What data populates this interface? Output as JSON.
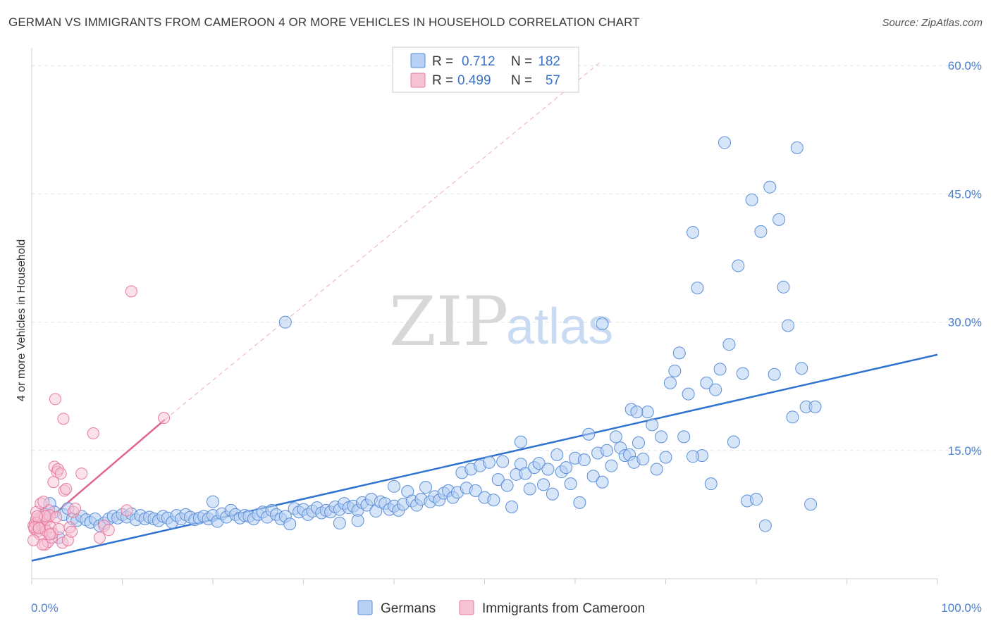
{
  "title": "GERMAN VS IMMIGRANTS FROM CAMEROON 4 OR MORE VEHICLES IN HOUSEHOLD CORRELATION CHART",
  "source": "Source: ZipAtlas.com",
  "watermark": {
    "zip": "ZIP",
    "atlas": "atlas"
  },
  "colors": {
    "germans": "#5b8fd9",
    "germans_fill": "#b7d0f3",
    "cameroon": "#e87aa0",
    "cameroon_fill": "#f6c3d5",
    "blue_line": "#2f73d0",
    "pink_line": "#e0648f",
    "tick": "#4a7fd0"
  },
  "legend": {
    "rows": [
      {
        "r_label": "R =",
        "r_value": "0.712",
        "n_label": "N =",
        "n_value": "182"
      },
      {
        "r_label": "R =",
        "r_value": "0.499",
        "n_label": "N =",
        "n_value": "57"
      }
    ]
  },
  "bottom_legend": [
    "Germans",
    "Immigrants from Cameroon"
  ],
  "chart_data": {
    "type": "scatter",
    "xlabel": "",
    "ylabel": "4 or more Vehicles in Household",
    "xlim": [
      0,
      100
    ],
    "ylim": [
      0,
      61.5
    ],
    "x_tick_labels": [
      "0.0%",
      "100.0%"
    ],
    "y_ticks": [
      15,
      30,
      45,
      60
    ],
    "y_tick_labels": [
      "15.0%",
      "30.0%",
      "45.0%",
      "60.0%"
    ],
    "grid": true,
    "legend_placement": "top-center",
    "series": [
      {
        "name": "Germans",
        "trend": {
          "x": [
            0,
            100
          ],
          "y": [
            2.1,
            26.2
          ]
        },
        "points": [
          [
            1.5,
            7.5
          ],
          [
            2.0,
            8.8
          ],
          [
            2.5,
            7.8
          ],
          [
            3.0,
            4.8
          ],
          [
            3.5,
            7.5
          ],
          [
            4.0,
            8.2
          ],
          [
            4.5,
            7.0
          ],
          [
            5.0,
            6.8
          ],
          [
            5.5,
            7.3
          ],
          [
            6.0,
            6.9
          ],
          [
            6.5,
            6.6
          ],
          [
            7.0,
            7.0
          ],
          [
            7.5,
            6.2
          ],
          [
            8.0,
            6.5
          ],
          [
            8.5,
            7.0
          ],
          [
            9.0,
            7.3
          ],
          [
            9.5,
            7.1
          ],
          [
            10.0,
            7.5
          ],
          [
            10.5,
            7.2
          ],
          [
            11.0,
            7.6
          ],
          [
            11.5,
            6.9
          ],
          [
            12.0,
            7.4
          ],
          [
            12.5,
            7.0
          ],
          [
            13.0,
            7.2
          ],
          [
            13.5,
            7.0
          ],
          [
            14.0,
            6.8
          ],
          [
            14.5,
            7.3
          ],
          [
            15.0,
            7.1
          ],
          [
            15.5,
            6.6
          ],
          [
            16.0,
            7.4
          ],
          [
            16.5,
            7.0
          ],
          [
            17.0,
            7.5
          ],
          [
            17.5,
            7.2
          ],
          [
            18.0,
            6.9
          ],
          [
            18.5,
            7.1
          ],
          [
            19.0,
            7.3
          ],
          [
            19.5,
            7.0
          ],
          [
            20.0,
            7.4
          ],
          [
            20.5,
            6.7
          ],
          [
            21.0,
            7.6
          ],
          [
            21.5,
            7.2
          ],
          [
            22.0,
            8.0
          ],
          [
            22.5,
            7.5
          ],
          [
            23.0,
            7.1
          ],
          [
            23.5,
            7.4
          ],
          [
            24.0,
            7.3
          ],
          [
            24.5,
            7.0
          ],
          [
            25.0,
            7.5
          ],
          [
            25.5,
            7.8
          ],
          [
            26.0,
            7.2
          ],
          [
            26.5,
            8.0
          ],
          [
            27.0,
            7.5
          ],
          [
            27.5,
            7.0
          ],
          [
            28.0,
            7.3
          ],
          [
            28.5,
            6.4
          ],
          [
            29.0,
            8.2
          ],
          [
            29.5,
            7.8
          ],
          [
            30.0,
            8.1
          ],
          [
            30.5,
            7.5
          ],
          [
            31.0,
            7.9
          ],
          [
            31.5,
            8.3
          ],
          [
            32.0,
            7.7
          ],
          [
            32.5,
            8.0
          ],
          [
            33.0,
            7.8
          ],
          [
            33.5,
            8.4
          ],
          [
            34.0,
            8.1
          ],
          [
            34.5,
            8.8
          ],
          [
            35.0,
            8.3
          ],
          [
            35.5,
            8.5
          ],
          [
            36.0,
            8.0
          ],
          [
            36.5,
            8.9
          ],
          [
            37.0,
            8.6
          ],
          [
            37.5,
            9.3
          ],
          [
            38.0,
            7.9
          ],
          [
            38.5,
            9.0
          ],
          [
            39.0,
            8.8
          ],
          [
            39.5,
            8.1
          ],
          [
            40.0,
            8.5
          ],
          [
            40.5,
            8.0
          ],
          [
            41.0,
            8.7
          ],
          [
            41.5,
            10.2
          ],
          [
            42.0,
            9.1
          ],
          [
            42.5,
            8.6
          ],
          [
            43.0,
            9.3
          ],
          [
            43.5,
            10.7
          ],
          [
            44.0,
            9.0
          ],
          [
            44.5,
            9.6
          ],
          [
            45.0,
            9.2
          ],
          [
            45.5,
            10.0
          ],
          [
            46.0,
            10.3
          ],
          [
            46.5,
            9.5
          ],
          [
            47.0,
            10.1
          ],
          [
            47.5,
            12.4
          ],
          [
            48.0,
            10.6
          ],
          [
            48.5,
            12.8
          ],
          [
            49.0,
            10.3
          ],
          [
            49.5,
            13.2
          ],
          [
            50.0,
            9.5
          ],
          [
            50.5,
            13.6
          ],
          [
            51.0,
            9.2
          ],
          [
            51.5,
            11.6
          ],
          [
            52.0,
            13.7
          ],
          [
            52.5,
            10.9
          ],
          [
            53.0,
            8.4
          ],
          [
            53.5,
            12.2
          ],
          [
            54.0,
            13.4
          ],
          [
            54.5,
            12.3
          ],
          [
            55.0,
            10.5
          ],
          [
            55.5,
            13.0
          ],
          [
            56.0,
            13.5
          ],
          [
            56.5,
            11.0
          ],
          [
            57.0,
            12.8
          ],
          [
            57.5,
            9.9
          ],
          [
            58.0,
            14.5
          ],
          [
            58.5,
            12.5
          ],
          [
            59.0,
            13.0
          ],
          [
            59.5,
            11.1
          ],
          [
            60.0,
            14.1
          ],
          [
            60.5,
            8.9
          ],
          [
            61.0,
            13.9
          ],
          [
            61.5,
            16.9
          ],
          [
            62.0,
            12.0
          ],
          [
            62.5,
            14.7
          ],
          [
            63.0,
            11.3
          ],
          [
            63.5,
            15.0
          ],
          [
            64.0,
            13.2
          ],
          [
            64.5,
            16.6
          ],
          [
            65.0,
            15.3
          ],
          [
            65.5,
            14.4
          ],
          [
            66.0,
            14.5
          ],
          [
            66.5,
            13.6
          ],
          [
            67.0,
            15.9
          ],
          [
            67.5,
            14.0
          ],
          [
            68.0,
            19.5
          ],
          [
            68.5,
            18.0
          ],
          [
            69.0,
            12.8
          ],
          [
            69.5,
            16.6
          ],
          [
            70.0,
            14.2
          ],
          [
            70.5,
            22.9
          ],
          [
            71.0,
            24.3
          ],
          [
            71.5,
            26.4
          ],
          [
            72.0,
            16.6
          ],
          [
            72.5,
            21.6
          ],
          [
            73.0,
            40.5
          ],
          [
            73.5,
            34.0
          ],
          [
            74.0,
            14.4
          ],
          [
            74.5,
            22.9
          ],
          [
            75.0,
            11.1
          ],
          [
            75.5,
            22.1
          ],
          [
            76.0,
            24.5
          ],
          [
            76.5,
            51.0
          ],
          [
            77.0,
            27.4
          ],
          [
            77.5,
            16.0
          ],
          [
            78.0,
            36.6
          ],
          [
            78.5,
            24.0
          ],
          [
            79.0,
            9.1
          ],
          [
            79.5,
            44.3
          ],
          [
            80.0,
            9.3
          ],
          [
            80.5,
            40.6
          ],
          [
            81.0,
            6.2
          ],
          [
            81.5,
            45.8
          ],
          [
            82.0,
            23.9
          ],
          [
            82.5,
            42.0
          ],
          [
            83.0,
            34.1
          ],
          [
            83.5,
            29.6
          ],
          [
            84.0,
            18.9
          ],
          [
            84.5,
            50.4
          ],
          [
            85.0,
            24.6
          ],
          [
            85.5,
            20.1
          ],
          [
            86.0,
            8.7
          ],
          [
            86.5,
            20.1
          ],
          [
            34.0,
            6.5
          ],
          [
            36.0,
            6.8
          ],
          [
            20.0,
            9.0
          ],
          [
            40.0,
            10.8
          ],
          [
            66.2,
            19.8
          ],
          [
            66.8,
            19.5
          ],
          [
            54.0,
            16.0
          ],
          [
            73.0,
            14.3
          ],
          [
            28.0,
            30.0
          ],
          [
            63.0,
            29.8
          ]
        ]
      },
      {
        "name": "Immigrants from Cameroon",
        "trend": {
          "x": [
            0,
            14.7
          ],
          "y": [
            5.3,
            18.6
          ]
        },
        "trend_ext": {
          "x": [
            14.7,
            63.0
          ],
          "y": [
            18.6,
            60.6
          ]
        },
        "points": [
          [
            0.2,
            6.2
          ],
          [
            0.3,
            5.8
          ],
          [
            0.4,
            6.5
          ],
          [
            0.5,
            7.0
          ],
          [
            0.6,
            5.5
          ],
          [
            0.7,
            6.0
          ],
          [
            0.8,
            6.8
          ],
          [
            0.9,
            5.2
          ],
          [
            1.0,
            7.2
          ],
          [
            1.1,
            6.4
          ],
          [
            1.2,
            5.9
          ],
          [
            1.3,
            7.5
          ],
          [
            1.4,
            6.1
          ],
          [
            1.5,
            4.0
          ],
          [
            1.6,
            5.6
          ],
          [
            1.7,
            6.9
          ],
          [
            1.8,
            4.3
          ],
          [
            1.9,
            8.0
          ],
          [
            2.0,
            7.4
          ],
          [
            2.1,
            6.0
          ],
          [
            2.2,
            4.8
          ],
          [
            2.3,
            5.3
          ],
          [
            2.4,
            11.3
          ],
          [
            2.5,
            13.1
          ],
          [
            2.6,
            21.0
          ],
          [
            2.8,
            12.5
          ],
          [
            2.9,
            12.8
          ],
          [
            3.0,
            5.8
          ],
          [
            3.2,
            12.3
          ],
          [
            3.4,
            4.2
          ],
          [
            3.5,
            18.7
          ],
          [
            3.6,
            10.3
          ],
          [
            3.8,
            10.5
          ],
          [
            4.0,
            4.5
          ],
          [
            4.2,
            6.0
          ],
          [
            4.4,
            5.5
          ],
          [
            4.6,
            7.8
          ],
          [
            4.8,
            8.2
          ],
          [
            5.5,
            12.3
          ],
          [
            6.8,
            17.0
          ],
          [
            7.5,
            4.8
          ],
          [
            8.0,
            6.2
          ],
          [
            8.5,
            5.7
          ],
          [
            11.0,
            33.6
          ],
          [
            10.5,
            8.0
          ],
          [
            14.6,
            18.8
          ],
          [
            0.5,
            7.8
          ],
          [
            1.0,
            8.8
          ],
          [
            1.2,
            4.0
          ],
          [
            1.5,
            7.3
          ],
          [
            0.3,
            6.0
          ],
          [
            0.8,
            5.9
          ],
          [
            2.0,
            5.2
          ],
          [
            2.7,
            7.2
          ],
          [
            0.6,
            7.3
          ],
          [
            1.3,
            9.0
          ],
          [
            0.2,
            4.5
          ]
        ]
      }
    ]
  }
}
